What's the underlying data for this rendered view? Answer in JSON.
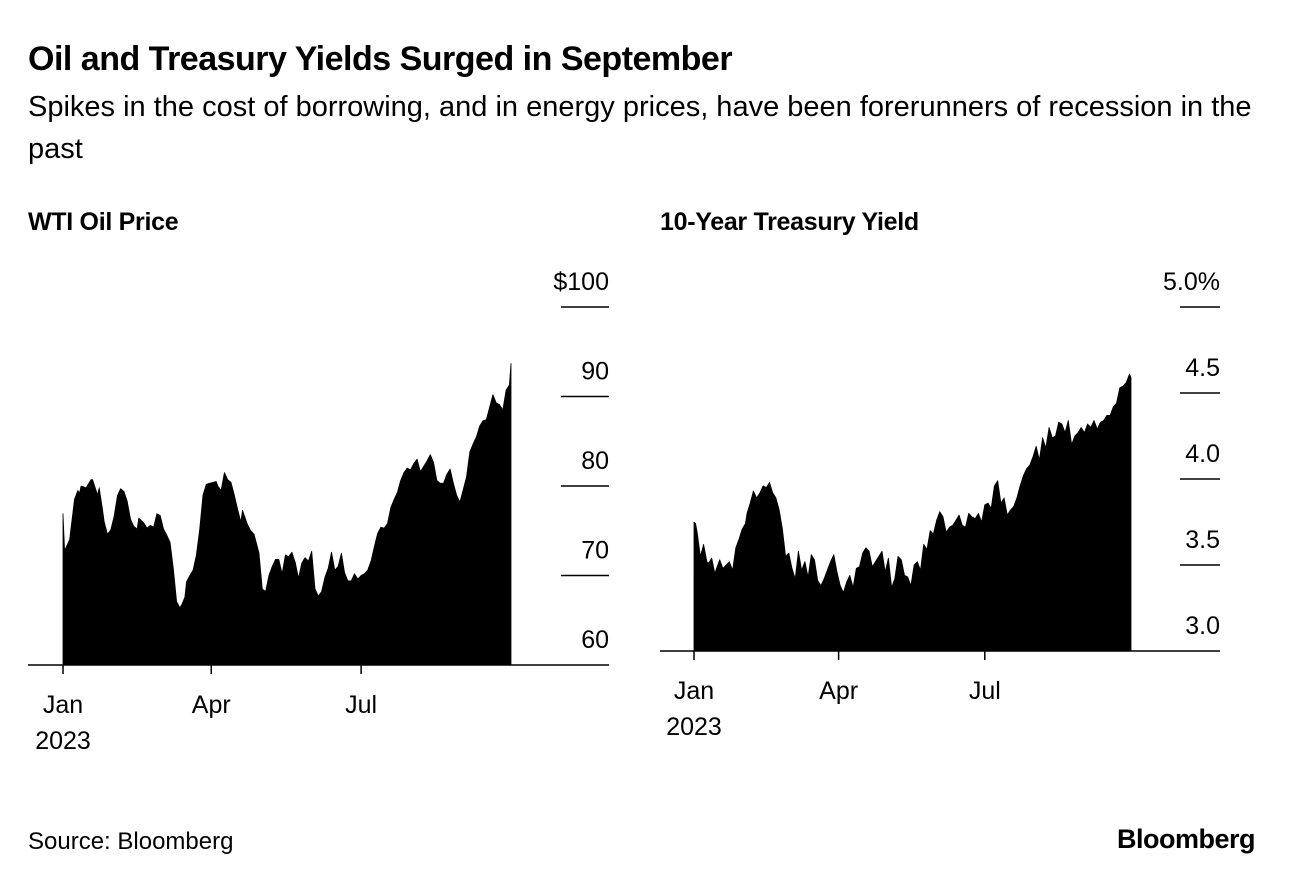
{
  "title": "Oil and Treasury Yields Surged in September",
  "subtitle": "Spikes in the cost of borrowing, and in energy prices, have been forerunners of recession in the past",
  "source": "Source: Bloomberg",
  "brand": "Bloomberg",
  "colors": {
    "fill": "#000000",
    "background": "#ffffff"
  },
  "chart_data": [
    {
      "type": "area",
      "title": "WTI Oil Price",
      "x_unit": "day_of_year_2023",
      "x_ticks": [
        {
          "x": 1,
          "label": "Jan",
          "sublabel": "2023"
        },
        {
          "x": 91,
          "label": "Apr",
          "sublabel": ""
        },
        {
          "x": 182,
          "label": "Jul",
          "sublabel": ""
        }
      ],
      "xlim": [
        1,
        273
      ],
      "ylim": [
        60,
        100
      ],
      "y_ticks": [
        {
          "value": 100,
          "label": "$100"
        },
        {
          "value": 90,
          "label": "90"
        },
        {
          "value": 80,
          "label": "80"
        },
        {
          "value": 70,
          "label": "70"
        },
        {
          "value": 60,
          "label": "60"
        }
      ],
      "series": [
        {
          "name": "WTI Oil Price",
          "x": [
            1,
            2,
            3,
            5,
            8,
            10,
            11,
            12,
            15,
            18,
            19,
            22,
            23,
            25,
            26,
            28,
            30,
            32,
            34,
            36,
            38,
            40,
            42,
            44,
            46,
            47,
            50,
            52,
            54,
            56,
            58,
            60,
            62,
            64,
            66,
            68,
            70,
            72,
            73,
            75,
            76,
            78,
            80,
            82,
            84,
            86,
            88,
            90,
            92,
            94,
            95,
            97,
            99,
            101,
            103,
            105,
            107,
            109,
            110,
            113,
            115,
            117,
            120,
            122,
            124,
            126,
            128,
            130,
            132,
            134,
            136,
            138,
            140,
            142,
            144,
            146,
            148,
            150,
            152,
            154,
            156,
            158,
            160,
            162,
            164,
            166,
            168,
            170,
            172,
            174,
            176,
            178,
            180,
            182,
            184,
            186,
            188,
            190,
            192,
            194,
            196,
            198,
            200,
            202,
            204,
            206,
            208,
            210,
            212,
            214,
            216,
            218,
            220,
            222,
            224,
            226,
            228,
            230,
            232,
            234,
            236,
            238,
            240,
            242,
            244,
            246,
            248,
            250,
            252,
            254,
            256,
            258,
            260,
            262,
            264,
            266,
            268,
            270,
            272,
            273
          ],
          "values": [
            76.9,
            72.8,
            73.2,
            74,
            78.5,
            79.5,
            79.2,
            80,
            79.8,
            80.7,
            80.7,
            79,
            79.8,
            77.4,
            76,
            74.6,
            75.1,
            76.6,
            78.9,
            79.7,
            79.4,
            78.3,
            76.3,
            75.5,
            75.2,
            76.4,
            75.9,
            75.3,
            75.6,
            75.4,
            76.9,
            76.7,
            75.2,
            74.5,
            73.7,
            70.7,
            67.1,
            66.4,
            66.7,
            67.6,
            69.3,
            70,
            70.6,
            72.3,
            75.2,
            79,
            80.2,
            80.3,
            80.4,
            80.5,
            80,
            79.5,
            81.5,
            80.7,
            80.4,
            79,
            77.4,
            76,
            77.3,
            75.7,
            75,
            74.6,
            72.5,
            68.5,
            68.2,
            70,
            71,
            71.8,
            71.8,
            70.2,
            72.3,
            72.1,
            72.6,
            71.5,
            69.7,
            71.4,
            72,
            71.6,
            72.7,
            68.5,
            67.7,
            68.2,
            69.8,
            70.8,
            72.6,
            70.6,
            71,
            72.5,
            70.3,
            69.4,
            69.4,
            70.2,
            69.6,
            70,
            70.2,
            70.6,
            71.6,
            73.2,
            74.7,
            75.4,
            75.3,
            75.8,
            77.6,
            78.5,
            79.3,
            80.6,
            81.5,
            82,
            81.8,
            82.5,
            83,
            81.6,
            82.2,
            82.8,
            83.5,
            82.6,
            80.6,
            80.3,
            80.3,
            81.3,
            81.9,
            80.3,
            79,
            78.2,
            79.6,
            81,
            83.8,
            84.7,
            85.5,
            86.7,
            87.3,
            87.4,
            88.8,
            90.2,
            89.3,
            89.1,
            88.5,
            90.7,
            91.3,
            93.7
          ]
        }
      ]
    },
    {
      "type": "area",
      "title": "10-Year Treasury Yield",
      "x_unit": "day_of_year_2023",
      "x_ticks": [
        {
          "x": 1,
          "label": "Jan",
          "sublabel": "2023"
        },
        {
          "x": 91,
          "label": "Apr",
          "sublabel": ""
        },
        {
          "x": 182,
          "label": "Jul",
          "sublabel": ""
        }
      ],
      "xlim": [
        1,
        273
      ],
      "ylim": [
        3.0,
        5.0
      ],
      "y_ticks": [
        {
          "value": 5.0,
          "label": "5.0%"
        },
        {
          "value": 4.5,
          "label": "4.5"
        },
        {
          "value": 4.0,
          "label": "4.0"
        },
        {
          "value": 3.5,
          "label": "3.5"
        },
        {
          "value": 3.0,
          "label": "3.0"
        }
      ],
      "series": [
        {
          "name": "10-Year Treasury Yield",
          "x": [
            1,
            2,
            3,
            5,
            7,
            9,
            10,
            12,
            14,
            15,
            17,
            19,
            21,
            23,
            25,
            27,
            29,
            31,
            33,
            34,
            36,
            38,
            40,
            42,
            44,
            46,
            48,
            50,
            52,
            54,
            56,
            58,
            60,
            62,
            64,
            66,
            68,
            70,
            72,
            74,
            76,
            78,
            80,
            82,
            84,
            86,
            88,
            90,
            92,
            94,
            96,
            98,
            100,
            102,
            104,
            106,
            108,
            110,
            112,
            114,
            116,
            118,
            120,
            122,
            124,
            126,
            128,
            130,
            132,
            134,
            136,
            138,
            140,
            142,
            144,
            146,
            148,
            150,
            152,
            154,
            156,
            158,
            160,
            162,
            164,
            166,
            168,
            170,
            172,
            174,
            176,
            178,
            180,
            182,
            184,
            186,
            188,
            190,
            192,
            194,
            196,
            198,
            200,
            202,
            204,
            206,
            208,
            210,
            212,
            214,
            216,
            218,
            220,
            222,
            224,
            226,
            228,
            230,
            232,
            234,
            236,
            238,
            240,
            242,
            244,
            246,
            248,
            250,
            252,
            254,
            256,
            258,
            260,
            262,
            264,
            266,
            268,
            270,
            272,
            273
          ],
          "values": [
            3.75,
            3.74,
            3.69,
            3.55,
            3.62,
            3.52,
            3.51,
            3.54,
            3.45,
            3.48,
            3.53,
            3.48,
            3.5,
            3.52,
            3.47,
            3.6,
            3.65,
            3.71,
            3.74,
            3.8,
            3.86,
            3.93,
            3.89,
            3.92,
            3.96,
            3.95,
            3.98,
            3.92,
            3.89,
            3.82,
            3.71,
            3.55,
            3.57,
            3.48,
            3.42,
            3.58,
            3.47,
            3.52,
            3.43,
            3.56,
            3.53,
            3.41,
            3.38,
            3.42,
            3.47,
            3.52,
            3.56,
            3.46,
            3.38,
            3.34,
            3.4,
            3.44,
            3.37,
            3.48,
            3.49,
            3.57,
            3.6,
            3.58,
            3.49,
            3.52,
            3.55,
            3.58,
            3.46,
            3.54,
            3.37,
            3.42,
            3.55,
            3.53,
            3.44,
            3.43,
            3.38,
            3.5,
            3.52,
            3.47,
            3.62,
            3.59,
            3.7,
            3.68,
            3.76,
            3.81,
            3.78,
            3.69,
            3.72,
            3.73,
            3.76,
            3.79,
            3.73,
            3.72,
            3.8,
            3.78,
            3.77,
            3.8,
            3.75,
            3.85,
            3.86,
            3.83,
            3.96,
            3.99,
            3.86,
            3.89,
            3.79,
            3.82,
            3.84,
            3.89,
            3.96,
            4.02,
            4.06,
            4.08,
            4.13,
            4.19,
            4.11,
            4.24,
            4.18,
            4.3,
            4.24,
            4.25,
            4.33,
            4.32,
            4.27,
            4.34,
            4.2,
            4.25,
            4.27,
            4.3,
            4.27,
            4.32,
            4.3,
            4.34,
            4.29,
            4.33,
            4.34,
            4.37,
            4.37,
            4.42,
            4.44,
            4.53,
            4.54,
            4.56,
            4.61,
            4.59
          ]
        }
      ]
    }
  ]
}
